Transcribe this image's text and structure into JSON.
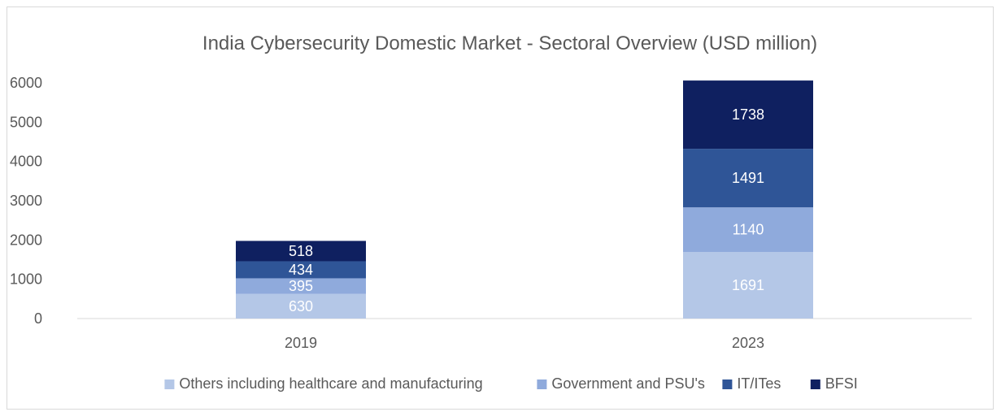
{
  "chart_data": {
    "type": "bar",
    "stacked": true,
    "title": "India Cybersecurity Domestic Market - Sectoral Overview (USD million)",
    "xlabel": "",
    "ylabel": "",
    "categories": [
      "2019",
      "2023"
    ],
    "ylim": [
      0,
      6000
    ],
    "yticks": [
      0,
      1000,
      2000,
      3000,
      4000,
      5000,
      6000
    ],
    "grid": false,
    "legend_position": "bottom",
    "series": [
      {
        "name": "Others including healthcare and manufacturing",
        "values": [
          630,
          1691
        ],
        "color": "#b4c7e7"
      },
      {
        "name": "Government and PSU's",
        "values": [
          395,
          1140
        ],
        "color": "#8faadc"
      },
      {
        "name": "IT/ITes",
        "values": [
          434,
          1491
        ],
        "color": "#2f5597"
      },
      {
        "name": "BFSI",
        "values": [
          518,
          1738
        ],
        "color": "#0f2060"
      }
    ]
  }
}
